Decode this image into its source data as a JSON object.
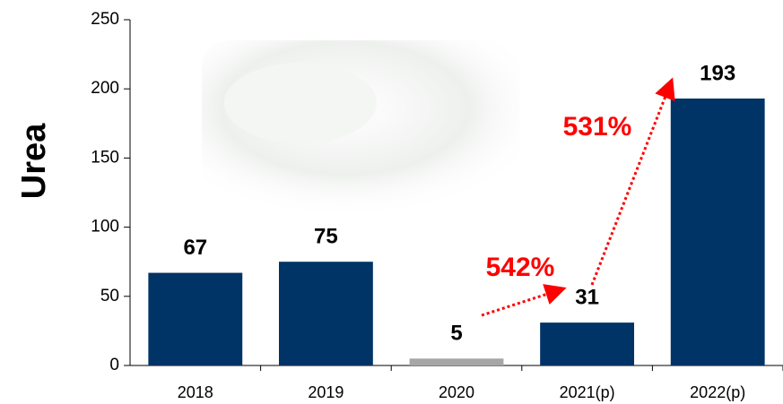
{
  "chart_data": {
    "type": "bar",
    "ylabel": "Urea",
    "categories": [
      "2018",
      "2019",
      "2020",
      "2021(p)",
      "2022(p)"
    ],
    "values": [
      67,
      75,
      5,
      31,
      193
    ],
    "colors": [
      "#003366",
      "#003366",
      "#a6a6a6",
      "#003366",
      "#003366"
    ],
    "ylim": [
      0,
      250
    ],
    "yticks": [
      0,
      50,
      100,
      150,
      200,
      250
    ],
    "grid": false,
    "annotations": [
      "542%",
      "531%"
    ]
  }
}
